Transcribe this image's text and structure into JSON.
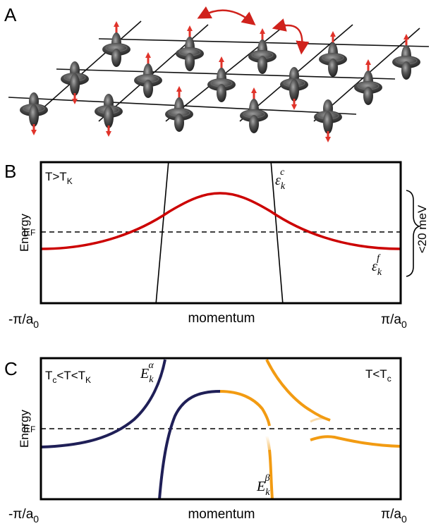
{
  "colors": {
    "lattice": "#111111",
    "spin_body": "#3c3c3c",
    "spin_highlight": "#9a9a9a",
    "arrow_red": "#d0221c",
    "band_red": "#cc0000",
    "band_navy": "#1f1f57",
    "band_orange": "#f29b12",
    "axes": "#000000"
  },
  "panelA": {
    "letter": "A",
    "lattice": {
      "rows": 3,
      "columns": 5
    }
  },
  "panelB": {
    "letter": "B",
    "label_T": "T>T",
    "label_T_sub": "K",
    "ylabel": "Energy",
    "fermi_label": "E",
    "fermi_sub": "F",
    "xlabel": "momentum",
    "x_left": "-π/a",
    "x_left_sub": "0",
    "x_right": "π/a",
    "x_right_sub": "0",
    "eps_c": "ε",
    "eps_c_sub": "k",
    "eps_c_sup": "c",
    "eps_f": "ε",
    "eps_f_sub": "k",
    "eps_f_sup": "f",
    "brace_label": "<20 meV"
  },
  "panelC": {
    "letter": "C",
    "label_left_1": "T",
    "label_left_1_sub": "c",
    "label_left_2": "<T<T",
    "label_left_2_sub": "K",
    "label_right": "T<T",
    "label_right_sub": "c",
    "ylabel": "Energy",
    "fermi_label": "E",
    "fermi_sub": "F",
    "xlabel": "momentum",
    "x_left": "-π/a",
    "x_left_sub": "0",
    "x_right": "π/a",
    "x_right_sub": "0",
    "E_alpha": "E",
    "E_alpha_sub": "k",
    "E_alpha_sup": "α",
    "E_beta": "E",
    "E_beta_sub": "k",
    "E_beta_sup": "β"
  }
}
